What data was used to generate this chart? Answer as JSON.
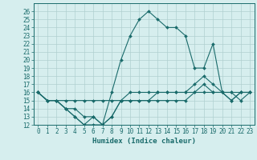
{
  "xlabel": "Humidex (Indice chaleur)",
  "x": [
    0,
    1,
    2,
    3,
    4,
    5,
    6,
    7,
    8,
    9,
    10,
    11,
    12,
    13,
    14,
    15,
    16,
    17,
    18,
    19,
    20,
    21,
    22,
    23
  ],
  "curve1": [
    16,
    15,
    15,
    14,
    13,
    12,
    13,
    12,
    16,
    20,
    23,
    25,
    26,
    25,
    24,
    24,
    23,
    19,
    19,
    22,
    16,
    16,
    15,
    16
  ],
  "curve2": [
    16,
    15,
    15,
    14,
    13,
    12,
    12,
    12,
    13,
    15,
    16,
    16,
    16,
    16,
    16,
    16,
    16,
    17,
    18,
    17,
    16,
    15,
    16,
    16
  ],
  "curve3": [
    16,
    15,
    15,
    14,
    14,
    13,
    13,
    12,
    13,
    15,
    15,
    15,
    15,
    15,
    15,
    15,
    15,
    16,
    17,
    16,
    16,
    15,
    16,
    16
  ],
  "curve4": [
    16,
    15,
    15,
    15,
    15,
    15,
    15,
    15,
    15,
    15,
    15,
    15,
    15,
    16,
    16,
    16,
    16,
    16,
    16,
    16,
    16,
    16,
    16,
    16
  ],
  "line_color": "#1a6b6b",
  "bg_color": "#d6eeee",
  "grid_color": "#b0d0d0",
  "ylim_min": 12,
  "ylim_max": 27,
  "yticks": [
    12,
    13,
    14,
    15,
    16,
    17,
    18,
    19,
    20,
    21,
    22,
    23,
    24,
    25,
    26
  ],
  "tick_fontsize": 5.5,
  "label_fontsize": 6.5
}
